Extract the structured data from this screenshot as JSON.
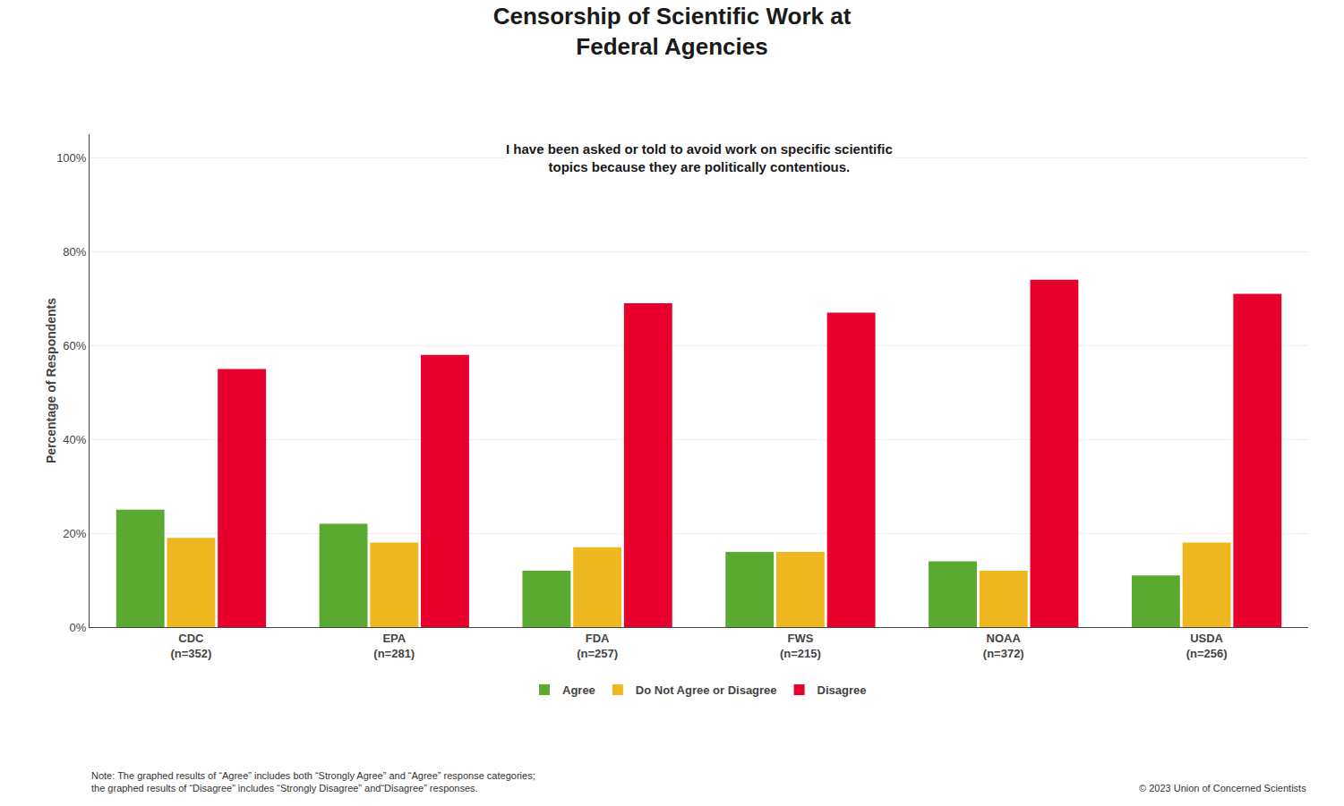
{
  "chart_data": {
    "type": "bar",
    "title": "Censorship of Scientific Work at\nFederal Agencies",
    "subtitle": "I have been asked or told to avoid work on specific scientific\ntopics because they are politically contentious.",
    "ylabel": "Percentage of Respondents",
    "categories": [
      "CDC\n(n=352)",
      "EPA\n(n=281)",
      "FDA\n(n=257)",
      "FWS\n(n=215)",
      "NOAA\n(n=372)",
      "USDA\n(n=256)"
    ],
    "series": [
      {
        "name": "Agree",
        "color": "#5aaa32",
        "values": [
          25,
          22,
          12,
          16,
          14,
          11
        ]
      },
      {
        "name": "Do Not Agree or Disagree",
        "color": "#f0b820",
        "values": [
          19,
          18,
          17,
          16,
          12,
          18
        ]
      },
      {
        "name": "Disagree",
        "color": "#e8002d",
        "values": [
          55,
          58,
          69,
          67,
          74,
          71
        ]
      }
    ],
    "ylim": [
      0,
      105
    ],
    "yticks": [
      {
        "value": 0,
        "label": "0%"
      },
      {
        "value": 20,
        "label": "20%"
      },
      {
        "value": 40,
        "label": "40%"
      },
      {
        "value": 60,
        "label": "60%"
      },
      {
        "value": 80,
        "label": "80%"
      },
      {
        "value": 100,
        "label": "100%"
      }
    ],
    "grid": true,
    "legend": "bottom",
    "annotations": [
      "Note: The graphed results of “Agree” includes both “Strongly Agree” and “Agree” response categories;\nthe graphed results of “Disagree” includes “Strongly Disagree” and“Disagree” responses.",
      "© 2023 Union of Concerned Scientists"
    ]
  }
}
